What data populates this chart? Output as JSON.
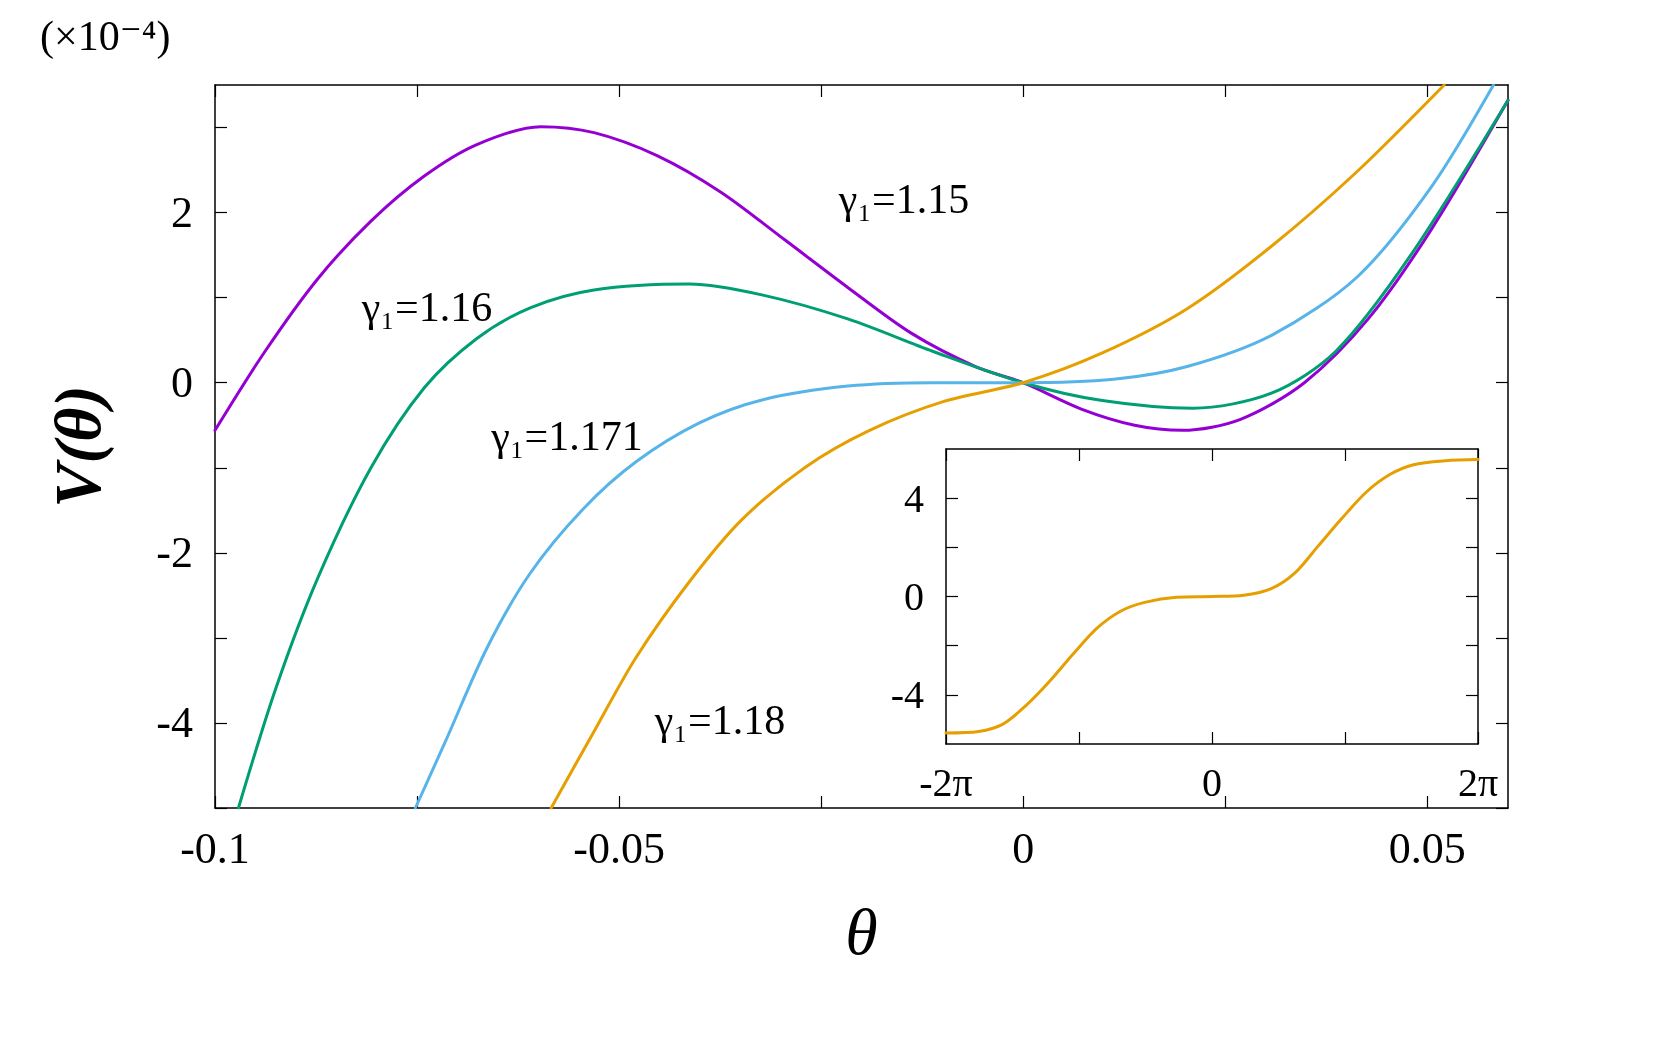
{
  "chart_data": [
    {
      "type": "line",
      "xlabel": "θ",
      "ylabel": "V(θ)",
      "annotations": [
        "(×10⁻⁴)"
      ],
      "xlim": [
        -0.1,
        0.06
      ],
      "ylim": [
        -5,
        3.5
      ],
      "xticks": [
        -0.1,
        {
          "value": -0.075,
          "label": null
        },
        -0.05,
        {
          "value": -0.025,
          "label": null
        },
        0,
        {
          "value": 0.025,
          "label": null
        },
        0.05
      ],
      "yticks": [
        {
          "value": -5,
          "label": null
        },
        -4,
        {
          "value": -3,
          "label": null
        },
        -2,
        {
          "value": -1,
          "label": null
        },
        0,
        {
          "value": 1,
          "label": null
        },
        2,
        {
          "value": 3,
          "label": null
        }
      ],
      "series": [
        {
          "name": "γ₁=1.15",
          "color": "#9400d3",
          "x": [
            -0.1,
            -0.0938,
            -0.0873,
            -0.0807,
            -0.0741,
            -0.0676,
            -0.0597,
            -0.0531,
            -0.0453,
            -0.0374,
            -0.0295,
            -0.0217,
            -0.0138,
            -0.0059,
            0,
            0.0072,
            0.0138,
            0.0197,
            0.0269,
            0.0348,
            0.0427,
            0.0505,
            0.06
          ],
          "values": [
            -0.56,
            0.37,
            1.22,
            1.9,
            2.43,
            2.8,
            3.01,
            2.94,
            2.67,
            2.24,
            1.68,
            1.12,
            0.58,
            0.19,
            0,
            -0.31,
            -0.5,
            -0.56,
            -0.43,
            0,
            0.75,
            1.8,
            3.32
          ]
        },
        {
          "name": "γ₁=1.16",
          "color": "#009e73",
          "x": [
            -0.0971,
            -0.0925,
            -0.0873,
            -0.0807,
            -0.0741,
            -0.0676,
            -0.061,
            -0.0531,
            -0.0413,
            -0.0322,
            -0.0217,
            -0.0112,
            0,
            0.0098,
            0.021,
            0.0308,
            0.0387,
            0.0479,
            0.06
          ],
          "values": [
            -5,
            -3.6,
            -2.3,
            -1,
            -0.06,
            0.52,
            0.88,
            1.09,
            1.16,
            1.03,
            0.75,
            0.37,
            0,
            -0.21,
            -0.3,
            -0.12,
            0.37,
            1.49,
            3.32
          ]
        },
        {
          "name": "γ₁=1.171",
          "color": "#56b4e9",
          "x": [
            -0.0752,
            -0.0715,
            -0.0663,
            -0.061,
            -0.0545,
            -0.0479,
            -0.04,
            -0.0322,
            -0.0217,
            -0.0112,
            0,
            0.0112,
            0.0203,
            0.0308,
            0.0413,
            0.0505,
            0.0582
          ],
          "values": [
            -5,
            -4.22,
            -3.11,
            -2.24,
            -1.49,
            -0.93,
            -0.47,
            -0.2,
            -0.04,
            0,
            0,
            0.04,
            0.19,
            0.56,
            1.24,
            2.3,
            3.5
          ]
        },
        {
          "name": "γ₁=1.18",
          "color": "#e69f00",
          "x": [
            -0.0584,
            -0.0531,
            -0.0479,
            -0.0413,
            -0.0348,
            -0.0269,
            -0.019,
            -0.0098,
            0,
            0.0098,
            0.0203,
            0.0308,
            0.0413,
            0.0521
          ],
          "values": [
            -5,
            -4.1,
            -3.23,
            -2.34,
            -1.61,
            -0.99,
            -0.56,
            -0.22,
            0,
            0.35,
            0.87,
            1.61,
            2.48,
            3.5
          ]
        }
      ]
    },
    {
      "type": "line",
      "xlim": [
        -6.2832,
        6.2832
      ],
      "ylim": [
        -6,
        6
      ],
      "xticks": [
        {
          "value": -6.2832,
          "label": "-2π"
        },
        {
          "value": -3.1416,
          "label": null
        },
        0,
        {
          "value": 3.1416,
          "label": null
        },
        {
          "value": 6.2832,
          "label": "2π"
        }
      ],
      "yticks": [
        -4,
        {
          "value": -2,
          "label": null
        },
        0,
        {
          "value": 2,
          "label": null
        },
        4
      ],
      "series": [
        {
          "color": "#e69f00",
          "x": [
            -6.283,
            -5.51,
            -4.95,
            -4.39,
            -3.83,
            -3.27,
            -2.71,
            -2.15,
            -1.59,
            -0.84,
            0,
            0.75,
            1.4,
            1.96,
            2.52,
            3.08,
            3.64,
            4.2,
            4.76,
            5.51,
            6.283
          ],
          "values": [
            -5.55,
            -5.49,
            -5.2,
            -4.43,
            -3.44,
            -2.32,
            -1.28,
            -0.59,
            -0.24,
            -0.03,
            0,
            0.05,
            0.32,
            0.96,
            2.08,
            3.2,
            4.24,
            4.96,
            5.36,
            5.52,
            5.57
          ]
        }
      ]
    }
  ]
}
